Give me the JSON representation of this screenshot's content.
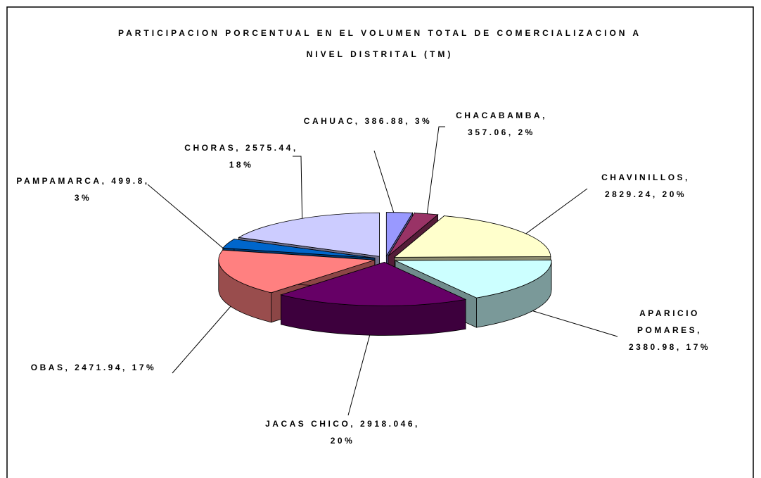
{
  "chart_data": {
    "type": "pie3d",
    "title": "PARTICIPACION PORCENTUAL EN EL VOLUMEN TOTAL DE COMERCIALIZACION A NIVEL DISTRITAL (TM)",
    "values": [
      386.88,
      357.06,
      2829.24,
      2380.98,
      2918.046,
      2471.94,
      499.8,
      2575.44
    ],
    "value_labels": [
      "CAHUAC, 386.88, 3%",
      "CHACABAMBA, 357.06, 2%",
      "CHAVINILLOS, 2829.24, 20%",
      "APARICIO POMARES, 2380.98, 17%",
      "JACAS CHICO, 2918.046, 20%",
      "OBAS, 2471.94, 17%",
      "PAMPAMARCA, 499.8, 3%",
      "CHORAS, 2575.44, 18%"
    ],
    "colors": [
      "#9999ff",
      "#993366",
      "#ffffcc",
      "#ccffff",
      "#660066",
      "#ff8080",
      "#0066cc",
      "#ccccff"
    ]
  }
}
